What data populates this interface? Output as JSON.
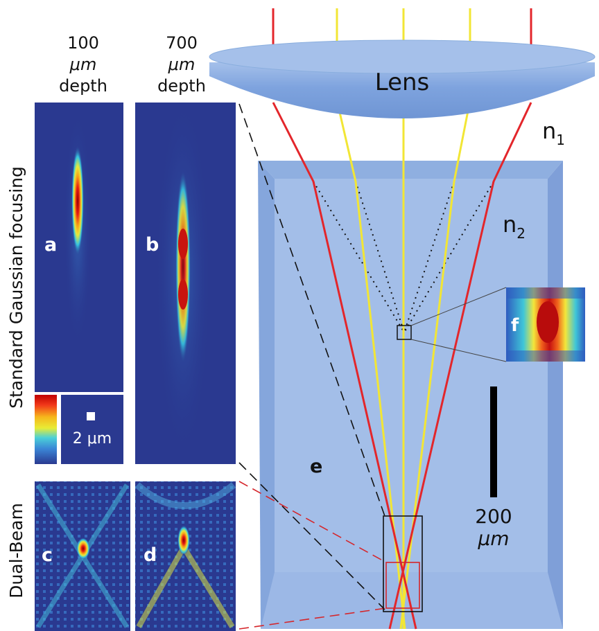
{
  "columns": {
    "col1": {
      "line1": "100",
      "line2": "μm",
      "line3": "depth"
    },
    "col2": {
      "line1": "700",
      "line2": "μm",
      "line3": "depth"
    }
  },
  "rows": {
    "standard": "Standard Gaussian focusing",
    "dual": "Dual-Beam"
  },
  "panels": {
    "a": "a",
    "b": "b",
    "c": "c",
    "d": "d",
    "e": "e",
    "f": "f"
  },
  "lens_label": "Lens",
  "medium": {
    "n1": {
      "base": "n",
      "sub": "1"
    },
    "n2": {
      "base": "n",
      "sub": "2"
    }
  },
  "scale_small": "2 μm",
  "scale_big": {
    "value": "200",
    "unit": "μm"
  },
  "colors": {
    "heatmap_bg": "#2a3990",
    "glass": "#9ab5e4",
    "glass_edge": "#7f9fd8",
    "lens": "#7ea3de",
    "red_ray": "#e3262b",
    "yellow_ray": "#f2e635"
  }
}
